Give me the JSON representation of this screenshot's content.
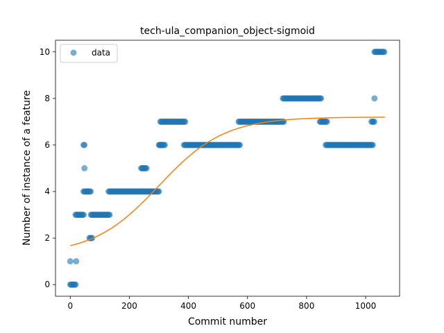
{
  "chart_data": {
    "type": "scatter",
    "title": "tech-ula_companion_object-sigmoid",
    "xlabel": "Commit number",
    "ylabel": "Number of instance of a feature",
    "xlim": [
      -50,
      1115
    ],
    "ylim": [
      -0.5,
      10.5
    ],
    "xticks": [
      0,
      200,
      400,
      600,
      800,
      1000
    ],
    "yticks": [
      0,
      2,
      4,
      6,
      8,
      10
    ],
    "legend": {
      "placement": "upper-left",
      "entries": [
        "data"
      ]
    },
    "grid": false,
    "colors": {
      "data": "#1f77b4",
      "fit": "#ff7f0e"
    },
    "series": [
      {
        "name": "data",
        "kind": "points",
        "segments": [
          {
            "x_start": 0,
            "x_end": 2,
            "y": 1
          },
          {
            "x_start": 0,
            "x_end": 20,
            "y": 0
          },
          {
            "x_start": 20,
            "x_end": 20,
            "y": 1
          },
          {
            "x_start": 18,
            "x_end": 45,
            "y": 3
          },
          {
            "x_start": 45,
            "x_end": 50,
            "y": 6
          },
          {
            "x_start": 48,
            "x_end": 48,
            "y": 5
          },
          {
            "x_start": 45,
            "x_end": 70,
            "y": 4
          },
          {
            "x_start": 65,
            "x_end": 75,
            "y": 2
          },
          {
            "x_start": 70,
            "x_end": 135,
            "y": 3
          },
          {
            "x_start": 130,
            "x_end": 240,
            "y": 4
          },
          {
            "x_start": 240,
            "x_end": 260,
            "y": 5
          },
          {
            "x_start": 240,
            "x_end": 300,
            "y": 4
          },
          {
            "x_start": 300,
            "x_end": 310,
            "y": 6
          },
          {
            "x_start": 305,
            "x_end": 390,
            "y": 7
          },
          {
            "x_start": 305,
            "x_end": 320,
            "y": 6
          },
          {
            "x_start": 385,
            "x_end": 575,
            "y": 6
          },
          {
            "x_start": 570,
            "x_end": 725,
            "y": 7
          },
          {
            "x_start": 720,
            "x_end": 850,
            "y": 8
          },
          {
            "x_start": 845,
            "x_end": 870,
            "y": 7
          },
          {
            "x_start": 865,
            "x_end": 1025,
            "y": 6
          },
          {
            "x_start": 1020,
            "x_end": 1030,
            "y": 7
          },
          {
            "x_start": 1030,
            "x_end": 1030,
            "y": 8
          },
          {
            "x_start": 1030,
            "x_end": 1065,
            "y": 10
          }
        ]
      },
      {
        "name": "fit",
        "kind": "sigmoid-curve",
        "x_range": [
          0,
          1065
        ],
        "sigmoid": {
          "lower": 1.3,
          "upper": 7.2,
          "midpoint": 300,
          "rate": 0.009
        }
      }
    ]
  }
}
